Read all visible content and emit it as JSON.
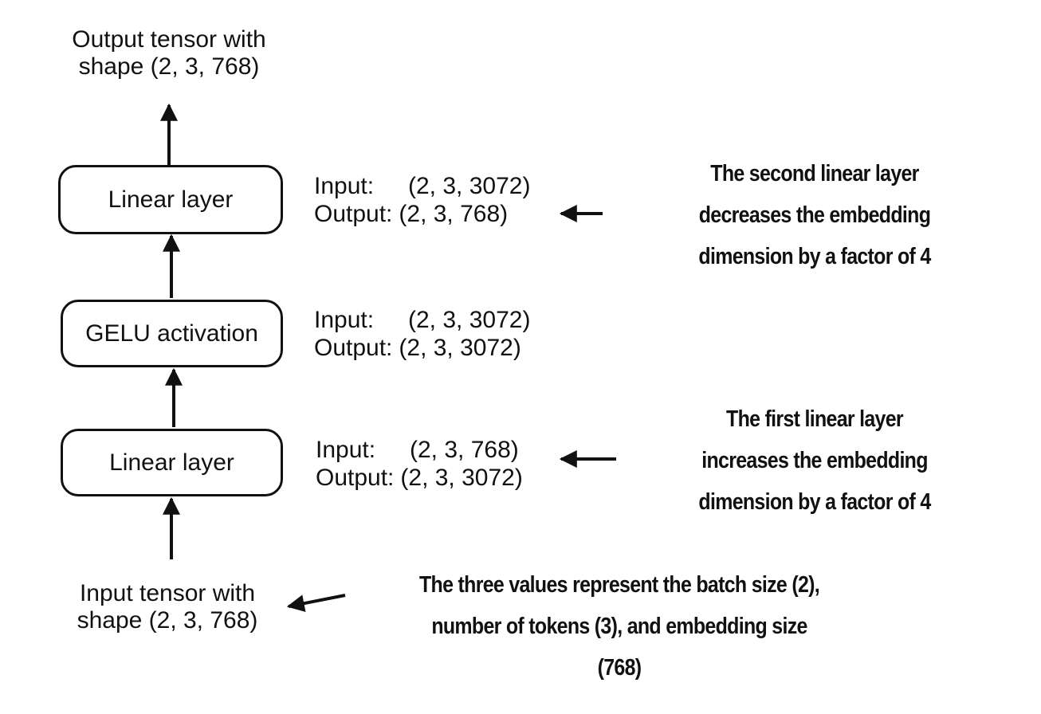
{
  "diagram": {
    "output_label": [
      "Output tensor with",
      "shape (2, 3, 768)"
    ],
    "input_label": [
      "Input tensor with",
      "shape (2, 3, 768)"
    ],
    "boxes": {
      "top": "Linear layer",
      "middle": "GELU activation",
      "bottom": "Linear layer"
    },
    "shapes": {
      "top": {
        "input_key": "Input:",
        "input_val": "(2, 3, 3072)",
        "output_key": "Output:",
        "output_val": "(2, 3, 768)"
      },
      "middle": {
        "input_key": "Input:",
        "input_val": "(2, 3, 3072)",
        "output_key": "Output:",
        "output_val": "(2, 3, 3072)"
      },
      "bottom": {
        "input_key": "Input:",
        "input_val": "(2, 3, 768)",
        "output_key": "Output:",
        "output_val": "(2, 3, 3072)"
      }
    },
    "annotations": {
      "second_linear": [
        "The second linear layer",
        "decreases the embedding",
        "dimension by a factor of 4"
      ],
      "first_linear": [
        "The first linear layer",
        "increases the embedding",
        "dimension by a factor of 4"
      ],
      "three_values": [
        "The three values represent the batch size (2),",
        "number of tokens (3), and embedding size",
        "(768)"
      ]
    }
  }
}
